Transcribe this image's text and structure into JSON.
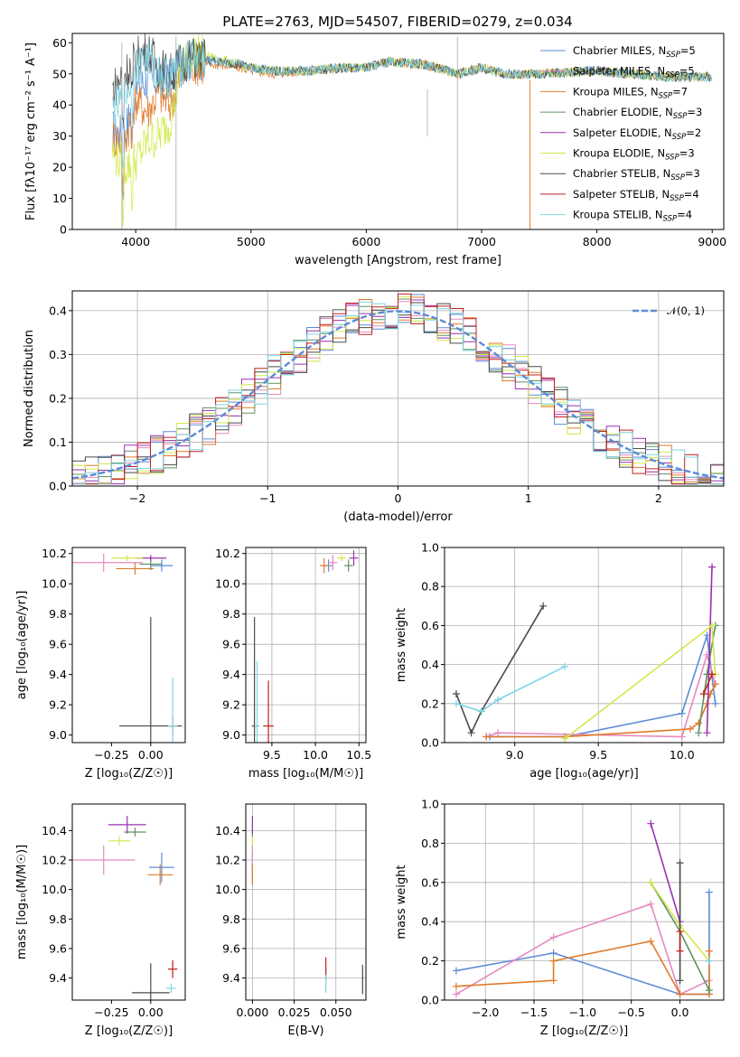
{
  "figure": {
    "title": "PLATE=2763, MJD=54507, FIBERID=0279, z=0.034"
  },
  "series": [
    {
      "name": "Chabrier MILES",
      "nssp": "5",
      "color": "#5b8bd6"
    },
    {
      "name": "Salpeter MILES",
      "nssp": "5",
      "color": "#e58ac0"
    },
    {
      "name": "Kroupa MILES",
      "nssp": "7",
      "color": "#e07b2a"
    },
    {
      "name": "Chabrier ELODIE",
      "nssp": "3",
      "color": "#5f8f62"
    },
    {
      "name": "Salpeter ELODIE",
      "nssp": "2",
      "color": "#9a30b0"
    },
    {
      "name": "Kroupa ELODIE",
      "nssp": "3",
      "color": "#d2e848"
    },
    {
      "name": "Chabrier STELIB",
      "nssp": "3",
      "color": "#4a4a4a"
    },
    {
      "name": "Salpeter STELIB",
      "nssp": "4",
      "color": "#c02020"
    },
    {
      "name": "Kroupa STELIB",
      "nssp": "4",
      "color": "#7fd4e0"
    }
  ],
  "chart_data": [
    {
      "id": "spectrum",
      "type": "line",
      "xlabel": "wavelength [Angstrom, rest frame]",
      "ylabel": "Flux [fλ10⁻¹⁷ erg cm⁻² s⁻¹ A⁻¹]",
      "xlim": [
        3450,
        9100
      ],
      "ylim": [
        0,
        63
      ],
      "xticks": [
        4000,
        5000,
        6000,
        7000,
        8000,
        9000
      ],
      "yticks": [
        0,
        10,
        20,
        30,
        40,
        50,
        60
      ],
      "grid": false,
      "legend": "top-right",
      "x": [
        3800,
        3900,
        4000,
        4100,
        4200,
        4300,
        4400,
        4500,
        4700,
        4900,
        5000,
        5200,
        5500,
        5800,
        6000,
        6200,
        6500,
        6800,
        7000,
        7200,
        7500,
        8000,
        8300,
        8600,
        9000
      ],
      "series": [
        {
          "name": "Chabrier MILES",
          "values": [
            32,
            30,
            45,
            48,
            49,
            48,
            53,
            55,
            54,
            53,
            52,
            51,
            51,
            52,
            52,
            54,
            53,
            50,
            52,
            50,
            50,
            51,
            50,
            49,
            49
          ]
        },
        {
          "name": "Kroupa MILES",
          "values": [
            30,
            28,
            42,
            38,
            44,
            40,
            50,
            53,
            53,
            52,
            51,
            50,
            51,
            52,
            52,
            54,
            53,
            50,
            52,
            50,
            50,
            51,
            50,
            49,
            49
          ]
        },
        {
          "name": "Kroupa ELODIE",
          "values": [
            25,
            20,
            22,
            28,
            30,
            35,
            52,
            57,
            55,
            53,
            52,
            51,
            51,
            52,
            52,
            54,
            53,
            50,
            52,
            50,
            50,
            51,
            50,
            49,
            49
          ]
        },
        {
          "name": "Chabrier STELIB",
          "values": [
            45,
            50,
            55,
            58,
            52,
            50,
            54,
            55,
            54,
            53,
            52,
            51,
            51,
            52,
            52,
            54,
            53,
            50,
            52,
            50,
            50,
            51,
            50,
            49,
            49
          ]
        },
        {
          "name": "Kroupa STELIB",
          "values": [
            38,
            42,
            52,
            55,
            50,
            49,
            54,
            55,
            54,
            53,
            52,
            51,
            51,
            52,
            52,
            54,
            53,
            50,
            52,
            50,
            50,
            51,
            50,
            49,
            49
          ]
        }
      ]
    },
    {
      "id": "residuals",
      "type": "line",
      "xlabel": "(data-model)/error",
      "ylabel": "Normed distribution",
      "xlim": [
        -2.5,
        2.5
      ],
      "ylim": [
        0,
        0.445
      ],
      "xticks": [
        -2,
        -1,
        0,
        1,
        2
      ],
      "yticks": [
        0.0,
        0.1,
        0.2,
        0.3,
        0.4
      ],
      "grid": true,
      "legend": "top-right",
      "normal_label": "𝒩(0, 1)",
      "normal_color": "#5b8bd6",
      "bin_width": 0.1
    },
    {
      "id": "age-vs-z",
      "type": "scatter",
      "xlabel": "Z [log₁₀(Z/Z☉)]",
      "ylabel": "age  [log₁₀(age/yr)]",
      "xlim": [
        -0.5,
        0.22
      ],
      "ylim": [
        8.95,
        10.24
      ],
      "xticks": [
        -0.25,
        0.0
      ],
      "xticklabels": [
        "−0.25",
        "0.00"
      ],
      "yticks": [
        9.0,
        9.2,
        9.4,
        9.6,
        9.8,
        10.0,
        10.2
      ],
      "grid": false,
      "points": [
        {
          "s": 0,
          "x": 0.07,
          "y": 10.12,
          "dx": 0.07,
          "dy": 0.04
        },
        {
          "s": 1,
          "x": -0.3,
          "y": 10.14,
          "dx": 0.25,
          "dy": 0.06
        },
        {
          "s": 2,
          "x": -0.1,
          "y": 10.1,
          "dx": 0.12,
          "dy": 0.04
        },
        {
          "s": 3,
          "x": 0.0,
          "y": 10.13,
          "dx": 0.07,
          "dy": 0.04
        },
        {
          "s": 4,
          "x": 0.0,
          "y": 10.17,
          "dx": 0.1,
          "dy": 0.02
        },
        {
          "s": 5,
          "x": -0.15,
          "y": 10.17,
          "dx": 0.1,
          "dy": 0.02
        },
        {
          "s": 6,
          "x": 0.0,
          "y": 9.06,
          "dx": 0.2,
          "dy": 0.72
        },
        {
          "s": 7,
          "x": 0.14,
          "y": 9.06,
          "dx": 0.03,
          "dy": 0.06
        },
        {
          "s": 8,
          "x": 0.14,
          "y": 9.06,
          "dx": 0.03,
          "dy": 0.32
        }
      ]
    },
    {
      "id": "age-vs-mass",
      "type": "scatter",
      "xlabel": "mass [log₁₀(M/M☉)]",
      "ylabel": "",
      "xlim": [
        9.2,
        10.58
      ],
      "ylim": [
        8.95,
        10.24
      ],
      "xticks": [
        9.5,
        10.0,
        10.5
      ],
      "yticks": [
        9.0,
        9.2,
        9.4,
        9.6,
        9.8,
        10.0,
        10.2
      ],
      "grid": true,
      "points": [
        {
          "s": 0,
          "x": 10.15,
          "y": 10.12,
          "dx": 0.05,
          "dy": 0.04
        },
        {
          "s": 1,
          "x": 10.2,
          "y": 10.14,
          "dx": 0.05,
          "dy": 0.05
        },
        {
          "s": 2,
          "x": 10.1,
          "y": 10.12,
          "dx": 0.05,
          "dy": 0.05
        },
        {
          "s": 3,
          "x": 10.38,
          "y": 10.12,
          "dx": 0.05,
          "dy": 0.04
        },
        {
          "s": 4,
          "x": 10.44,
          "y": 10.17,
          "dx": 0.05,
          "dy": 0.05
        },
        {
          "s": 5,
          "x": 10.3,
          "y": 10.17,
          "dx": 0.05,
          "dy": 0.02
        },
        {
          "s": 6,
          "x": 9.3,
          "y": 9.06,
          "dx": 0.03,
          "dy": 0.72
        },
        {
          "s": 7,
          "x": 9.46,
          "y": 9.06,
          "dx": 0.06,
          "dy": 0.3
        },
        {
          "s": 8,
          "x": 9.33,
          "y": 9.06,
          "dx": 0.03,
          "dy": 0.43
        }
      ]
    },
    {
      "id": "weight-vs-age",
      "type": "line",
      "xlabel": "age  [log₁₀(age/yr)]",
      "ylabel": "mass weight",
      "xlim": [
        8.58,
        10.25
      ],
      "ylim": [
        0,
        1.0
      ],
      "xticks": [
        9.0,
        9.5,
        10.0
      ],
      "yticks": [
        0.0,
        0.2,
        0.4,
        0.6,
        0.8,
        1.0
      ],
      "grid": true,
      "series": [
        {
          "s": 0,
          "x": [
            8.85,
            9.3,
            10.0,
            10.15,
            10.2
          ],
          "y": [
            0.03,
            0.03,
            0.15,
            0.55,
            0.2
          ]
        },
        {
          "s": 1,
          "x": [
            8.83,
            8.9,
            10.0,
            10.15,
            10.2
          ],
          "y": [
            0.03,
            0.05,
            0.03,
            0.45,
            0.3
          ]
        },
        {
          "s": 2,
          "x": [
            8.83,
            9.3,
            10.05,
            10.1,
            10.15,
            10.17,
            10.2
          ],
          "y": [
            0.03,
            0.03,
            0.07,
            0.1,
            0.2,
            0.25,
            0.3
          ]
        },
        {
          "s": 3,
          "x": [
            10.1,
            10.15,
            10.2
          ],
          "y": [
            0.05,
            0.35,
            0.6
          ]
        },
        {
          "s": 4,
          "x": [
            10.15,
            10.18
          ],
          "y": [
            0.05,
            0.9
          ]
        },
        {
          "s": 5,
          "x": [
            9.3,
            10.18,
            10.2
          ],
          "y": [
            0.02,
            0.6,
            0.35
          ]
        },
        {
          "s": 6,
          "x": [
            8.65,
            8.74,
            8.8,
            9.17
          ],
          "y": [
            0.25,
            0.05,
            0.16,
            0.7
          ]
        },
        {
          "s": 7,
          "x": [
            10.13,
            10.18
          ],
          "y": [
            0.25,
            0.35
          ]
        },
        {
          "s": 8,
          "x": [
            8.65,
            8.8,
            8.9,
            9.3
          ],
          "y": [
            0.2,
            0.16,
            0.22,
            0.39
          ]
        }
      ]
    },
    {
      "id": "mass-vs-z",
      "type": "scatter",
      "xlabel": "Z [log₁₀(Z/Z☉)]",
      "ylabel": "mass [log₁₀(M/M☉)]",
      "xlim": [
        -0.5,
        0.22
      ],
      "ylim": [
        9.25,
        10.58
      ],
      "xticks": [
        -0.25,
        0.0
      ],
      "xticklabels": [
        "−0.25",
        "0.00"
      ],
      "yticks": [
        9.4,
        9.6,
        9.8,
        10.0,
        10.2,
        10.4
      ],
      "grid": false,
      "points": [
        {
          "s": 0,
          "x": 0.07,
          "y": 10.15,
          "dx": 0.08,
          "dy": 0.1
        },
        {
          "s": 1,
          "x": -0.3,
          "y": 10.2,
          "dx": 0.2,
          "dy": 0.1
        },
        {
          "s": 2,
          "x": 0.06,
          "y": 10.1,
          "dx": 0.08,
          "dy": 0.07
        },
        {
          "s": 3,
          "x": -0.1,
          "y": 10.39,
          "dx": 0.07,
          "dy": 0.03
        },
        {
          "s": 4,
          "x": -0.15,
          "y": 10.44,
          "dx": 0.12,
          "dy": 0.06
        },
        {
          "s": 5,
          "x": -0.2,
          "y": 10.33,
          "dx": 0.07,
          "dy": 0.03
        },
        {
          "s": 6,
          "x": 0.0,
          "y": 9.3,
          "dx": 0.12,
          "dy": 0.2
        },
        {
          "s": 7,
          "x": 0.14,
          "y": 9.46,
          "dx": 0.03,
          "dy": 0.06
        },
        {
          "s": 8,
          "x": 0.13,
          "y": 9.33,
          "dx": 0.03,
          "dy": 0.03
        }
      ]
    },
    {
      "id": "mass-vs-ebv",
      "type": "scatter",
      "xlabel": "E(B-V)",
      "ylabel": "",
      "xlim": [
        -0.004,
        0.068
      ],
      "ylim": [
        9.25,
        10.58
      ],
      "xticks": [
        0.0,
        0.025,
        0.05
      ],
      "xticklabels": [
        "0.000",
        "0.025",
        "0.050"
      ],
      "yticks": [
        9.4,
        9.6,
        9.8,
        10.0,
        10.2,
        10.4
      ],
      "grid": true,
      "points": [
        {
          "s": 0,
          "x": 0.0,
          "y": 10.15,
          "dx": 0.0003,
          "dy": 0.1
        },
        {
          "s": 1,
          "x": 0.0,
          "y": 10.2,
          "dx": 0.0003,
          "dy": 0.1
        },
        {
          "s": 2,
          "x": 0.0,
          "y": 10.1,
          "dx": 0.0003,
          "dy": 0.07
        },
        {
          "s": 3,
          "x": 0.0,
          "y": 10.39,
          "dx": 0.0003,
          "dy": 0.03
        },
        {
          "s": 4,
          "x": 0.0,
          "y": 10.44,
          "dx": 0.0003,
          "dy": 0.06
        },
        {
          "s": 5,
          "x": 0.0,
          "y": 10.33,
          "dx": 0.0003,
          "dy": 0.03
        },
        {
          "s": 6,
          "x": 0.066,
          "y": 9.39,
          "dx": 0.0003,
          "dy": 0.1
        },
        {
          "s": 7,
          "x": 0.044,
          "y": 9.46,
          "dx": 0.0003,
          "dy": 0.08
        },
        {
          "s": 8,
          "x": 0.044,
          "y": 9.36,
          "dx": 0.0003,
          "dy": 0.06
        }
      ]
    },
    {
      "id": "weight-vs-z",
      "type": "line",
      "xlabel": "Z [log₁₀(Z/Z☉)]",
      "ylabel": "mass weight",
      "xlim": [
        -2.42,
        0.45
      ],
      "ylim": [
        0,
        1.0
      ],
      "xticks": [
        -2.0,
        -1.5,
        -1.0,
        -0.5,
        0.0
      ],
      "xticklabels": [
        "−2.0",
        "−1.5",
        "−1.0",
        "−0.5",
        "0.0"
      ],
      "yticks": [
        0.0,
        0.2,
        0.4,
        0.6,
        0.8,
        1.0
      ],
      "grid": true,
      "series": [
        {
          "s": 0,
          "x": [
            -2.3,
            -1.3,
            0.0,
            0.3,
            0.3
          ],
          "y": [
            0.15,
            0.24,
            0.03,
            0.03,
            0.55
          ]
        },
        {
          "s": 1,
          "x": [
            -2.3,
            -1.3,
            -0.3,
            0.0,
            0.3
          ],
          "y": [
            0.03,
            0.32,
            0.49,
            0.03,
            0.1
          ]
        },
        {
          "s": 2,
          "x": [
            -2.3,
            -1.3,
            -1.3,
            -0.3,
            0.0,
            0.3,
            0.3
          ],
          "y": [
            0.07,
            0.1,
            0.2,
            0.3,
            0.03,
            0.03,
            0.25
          ]
        },
        {
          "s": 3,
          "x": [
            -0.3,
            0.0,
            0.3
          ],
          "y": [
            0.6,
            0.35,
            0.05
          ]
        },
        {
          "s": 4,
          "x": [
            -0.3,
            0.0
          ],
          "y": [
            0.9,
            0.4
          ]
        },
        {
          "s": 5,
          "x": [
            -0.3,
            0.0,
            0.3
          ],
          "y": [
            0.6,
            0.38,
            0.2
          ]
        },
        {
          "s": 6,
          "x": [
            0.0,
            0.0
          ],
          "y": [
            0.7,
            0.1
          ]
        },
        {
          "s": 7,
          "x": [
            0.0,
            0.0
          ],
          "y": [
            0.25,
            0.35
          ]
        },
        {
          "s": 8,
          "x": [
            0.3,
            0.3
          ],
          "y": [
            0.2,
            0.2
          ]
        }
      ]
    }
  ]
}
